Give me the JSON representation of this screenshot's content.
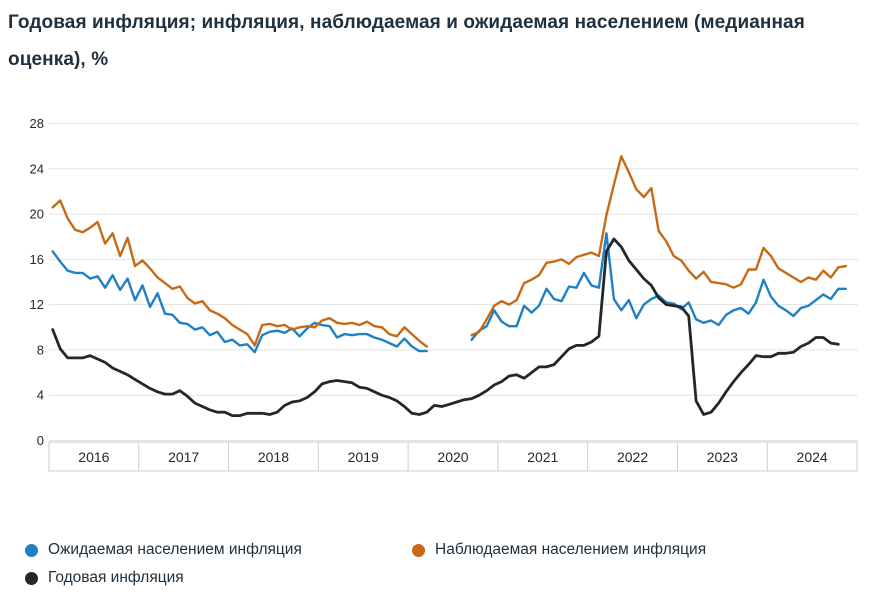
{
  "title": "Годовая инфляция; инфляция, наблюдаемая и ожидаемая населением (медианная оценка), %",
  "y_axis": {
    "tick_values": [
      0,
      4,
      8,
      12,
      16,
      20,
      24,
      28
    ],
    "tick_labels": [
      "0",
      "4",
      "8",
      "12",
      "16",
      "20",
      "24",
      "28"
    ]
  },
  "x_axis": {
    "year_labels": [
      "2016",
      "2017",
      "2018",
      "2019",
      "2020",
      "2021",
      "2022",
      "2023",
      "2024"
    ]
  },
  "legend": {
    "items": [
      {
        "label": "Ожидаемая населением инфляция",
        "color": "#1f80c4",
        "series": "expected"
      },
      {
        "label": "Наблюдаемая населением инфляция",
        "color": "#c76a15",
        "series": "observed"
      },
      {
        "label": "Годовая инфляция",
        "color": "#22272e",
        "series": "annual"
      }
    ]
  },
  "colors": {
    "grid": "#e3e3e3",
    "axis_border": "#c3cfdd",
    "text": "#1d2834",
    "title_text": "#20303f"
  },
  "chart_data": {
    "type": "line",
    "title": "Годовая инфляция; инфляция, наблюдаемая и ожидаемая населением (медианная оценка), %",
    "frequency": "monthly",
    "x_start": "2016-01",
    "x_end": "2024-11",
    "ylim": [
      0,
      28
    ],
    "y_step": 4,
    "grid": "horizontal",
    "legend_position": "bottom",
    "categories_years": [
      "2016",
      "2017",
      "2018",
      "2019",
      "2020",
      "2021",
      "2022",
      "2023",
      "2024"
    ],
    "survey_gap_months": [
      "2020-04",
      "2020-05",
      "2020-06",
      "2020-07",
      "2020-08"
    ],
    "series": [
      {
        "name": "Ожидаемая населением инфляция",
        "color": "#1f80c4",
        "stroke_width": 2.4,
        "values": [
          16.7,
          15.8,
          15.0,
          14.8,
          14.8,
          14.3,
          14.5,
          13.5,
          14.6,
          13.3,
          14.3,
          12.4,
          13.7,
          11.8,
          13.0,
          11.2,
          11.1,
          10.4,
          10.3,
          9.8,
          10.0,
          9.3,
          9.6,
          8.7,
          8.9,
          8.4,
          8.5,
          7.8,
          9.3,
          9.6,
          9.7,
          9.5,
          9.9,
          9.2,
          9.9,
          10.4,
          10.2,
          10.1,
          9.1,
          9.4,
          9.3,
          9.4,
          9.4,
          9.1,
          8.9,
          8.6,
          8.3,
          9.0,
          8.3,
          7.9,
          7.9,
          null,
          null,
          null,
          null,
          null,
          8.9,
          9.7,
          10.1,
          11.5,
          10.5,
          10.1,
          10.1,
          11.9,
          11.3,
          11.9,
          13.4,
          12.5,
          12.3,
          13.6,
          13.5,
          14.8,
          13.7,
          13.5,
          18.3,
          12.5,
          11.5,
          12.4,
          10.8,
          12.0,
          12.5,
          12.8,
          12.2,
          12.1,
          11.6,
          12.2,
          10.7,
          10.4,
          10.6,
          10.2,
          11.1,
          11.5,
          11.7,
          11.2,
          12.2,
          14.2,
          12.7,
          11.9,
          11.5,
          11.0,
          11.7,
          11.9,
          12.4,
          12.9,
          12.5,
          13.4,
          13.4
        ]
      },
      {
        "name": "Наблюдаемая населением инфляция",
        "color": "#c76a15",
        "stroke_width": 2.4,
        "values": [
          20.6,
          21.2,
          19.6,
          18.6,
          18.4,
          18.8,
          19.3,
          17.4,
          18.3,
          16.3,
          17.9,
          15.4,
          15.9,
          15.2,
          14.4,
          13.9,
          13.4,
          13.6,
          12.6,
          12.1,
          12.3,
          11.5,
          11.2,
          10.8,
          10.2,
          9.8,
          9.4,
          8.4,
          10.2,
          10.3,
          10.1,
          10.2,
          9.8,
          10.0,
          10.1,
          10.0,
          10.6,
          10.8,
          10.4,
          10.3,
          10.4,
          10.2,
          10.5,
          10.1,
          10.0,
          9.4,
          9.2,
          10.0,
          9.4,
          8.8,
          8.3,
          null,
          null,
          null,
          null,
          null,
          9.3,
          9.6,
          10.7,
          11.9,
          12.3,
          12.0,
          12.4,
          13.9,
          14.2,
          14.6,
          15.7,
          15.8,
          16.0,
          15.6,
          16.2,
          16.4,
          16.6,
          16.3,
          19.9,
          22.6,
          25.1,
          23.7,
          22.2,
          21.5,
          22.3,
          18.5,
          17.6,
          16.3,
          15.9,
          15.0,
          14.3,
          14.9,
          14.0,
          13.9,
          13.8,
          13.5,
          13.8,
          15.1,
          15.1,
          17.0,
          16.3,
          15.2,
          14.8,
          14.4,
          14.0,
          14.4,
          14.2,
          15.0,
          14.4,
          15.3,
          15.4
        ]
      },
      {
        "name": "Годовая инфляция",
        "color": "#22272e",
        "stroke_width": 2.8,
        "values": [
          9.8,
          8.1,
          7.3,
          7.3,
          7.3,
          7.5,
          7.2,
          6.9,
          6.4,
          6.1,
          5.8,
          5.4,
          5.0,
          4.6,
          4.3,
          4.1,
          4.1,
          4.4,
          3.9,
          3.3,
          3.0,
          2.7,
          2.5,
          2.5,
          2.2,
          2.2,
          2.4,
          2.4,
          2.4,
          2.3,
          2.5,
          3.1,
          3.4,
          3.5,
          3.8,
          4.3,
          5.0,
          5.2,
          5.3,
          5.2,
          5.1,
          4.7,
          4.6,
          4.3,
          4.0,
          3.8,
          3.5,
          3.0,
          2.4,
          2.3,
          2.5,
          3.1,
          3.0,
          3.2,
          3.4,
          3.6,
          3.7,
          4.0,
          4.4,
          4.9,
          5.2,
          5.7,
          5.8,
          5.5,
          6.0,
          6.5,
          6.5,
          6.7,
          7.4,
          8.1,
          8.4,
          8.4,
          8.7,
          9.2,
          16.7,
          17.8,
          17.1,
          15.9,
          15.1,
          14.3,
          13.7,
          12.6,
          12.0,
          11.9,
          11.8,
          11.0,
          3.5,
          2.3,
          2.5,
          3.3,
          4.3,
          5.2,
          6.0,
          6.7,
          7.5,
          7.4,
          7.4,
          7.7,
          7.7,
          7.8,
          8.3,
          8.6,
          9.1,
          9.1,
          8.6,
          8.5,
          null
        ]
      }
    ]
  }
}
